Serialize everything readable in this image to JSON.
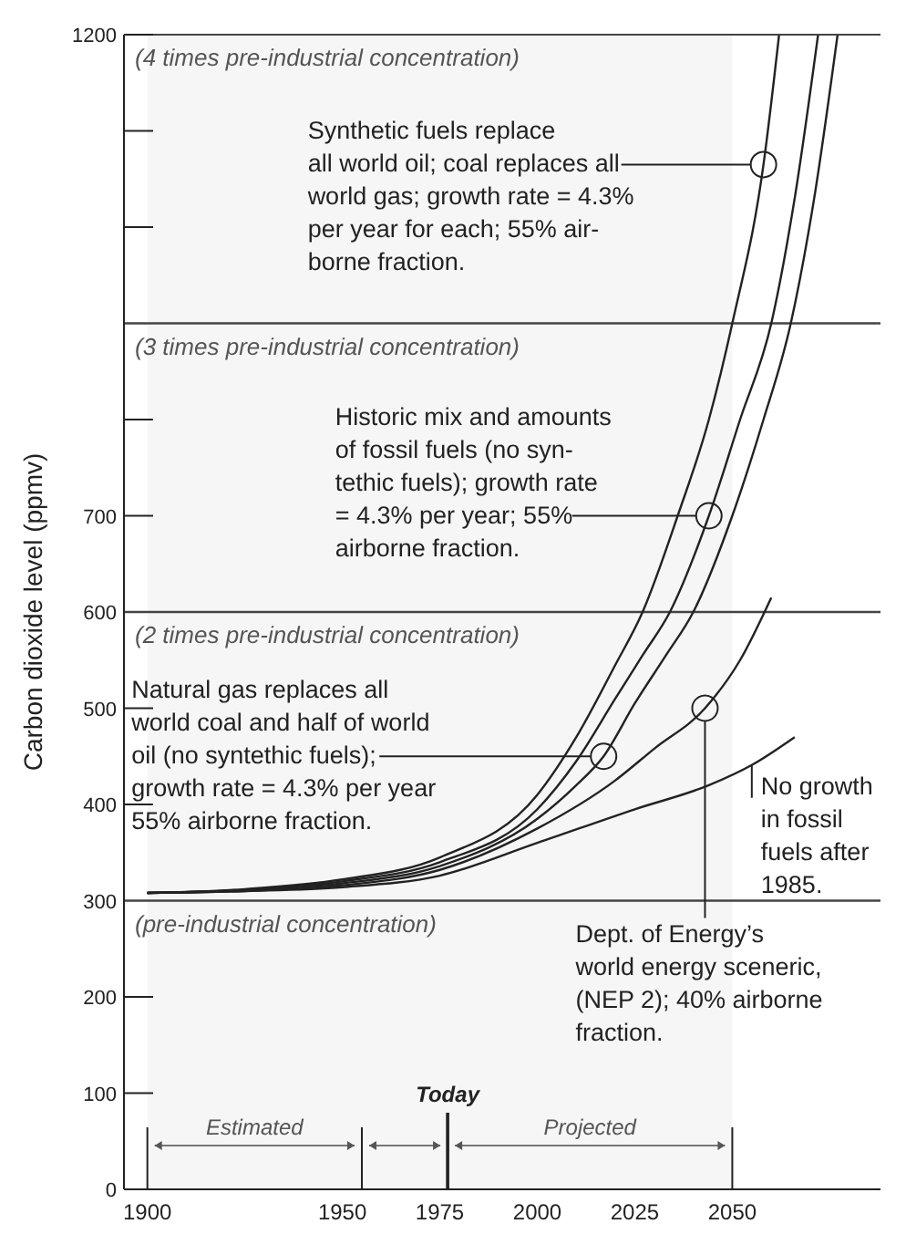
{
  "chart_data": {
    "type": "line",
    "ylabel": "Carbon dioxide level (ppmv)",
    "xlim": [
      1894,
      2088
    ],
    "xticks": [
      1900,
      1950,
      1975,
      2000,
      2025,
      2050
    ],
    "ylim": [
      0,
      1200
    ],
    "yticks": [
      0,
      100,
      200,
      300,
      400,
      500,
      600,
      700,
      {
        "value": 800,
        "label": null
      },
      {
        "value": 900,
        "label": null
      },
      {
        "value": 1000,
        "label": null
      },
      {
        "value": 1100,
        "label": null
      },
      1200
    ],
    "marker": "none",
    "line_style": "solid",
    "series": [
      {
        "color": "#222222",
        "x": [
          1900,
          1925,
          1950,
          1975,
          2000,
          2010,
          2020,
          2027,
          2036,
          2044,
          2050,
          2058,
          2062
        ],
        "values": [
          308,
          312,
          322,
          345,
          410,
          470,
          545,
          600,
          700,
          800,
          900,
          1065,
          1200
        ]
      },
      {
        "color": "#222222",
        "x": [
          1900,
          1925,
          1950,
          1975,
          2000,
          2010,
          2020,
          2027,
          2034,
          2044,
          2052,
          2060,
          2066,
          2072
        ],
        "values": [
          308,
          311,
          320,
          340,
          395,
          445,
          510,
          555,
          600,
          700,
          800,
          900,
          1030,
          1200
        ]
      },
      {
        "color": "#222222",
        "x": [
          1900,
          1925,
          1950,
          1975,
          2000,
          2010,
          2017,
          2025,
          2033,
          2040,
          2050,
          2058,
          2065,
          2071,
          2077
        ],
        "values": [
          308,
          311,
          318,
          336,
          385,
          420,
          450,
          505,
          555,
          600,
          700,
          800,
          900,
          1030,
          1200
        ]
      },
      {
        "color": "#222222",
        "x": [
          1900,
          1925,
          1950,
          1975,
          2000,
          2020,
          2030,
          2043,
          2052,
          2060
        ],
        "values": [
          308,
          310,
          316,
          332,
          375,
          425,
          458,
          500,
          550,
          615
        ]
      },
      {
        "color": "#222222",
        "x": [
          1900,
          1925,
          1950,
          1975,
          2000,
          2025,
          2044,
          2055,
          2066
        ],
        "values": [
          308,
          310,
          314,
          326,
          360,
          395,
          420,
          441,
          470
        ]
      }
    ],
    "ref_lines": [
      {
        "axis": "y",
        "value": 300,
        "label": "(pre-industrial concentration)",
        "color": "#444444"
      },
      {
        "axis": "y",
        "value": 600,
        "label": "(2 times pre-industrial concentration)",
        "color": "#444444"
      },
      {
        "axis": "y",
        "value": 900,
        "label": "(3 times pre-industrial concentration)",
        "color": "#444444"
      },
      {
        "axis": "x",
        "value": 1977,
        "label": "Today",
        "color": "#222222"
      }
    ],
    "bands": [
      {
        "axis": "x",
        "from": 1900,
        "to": 1955,
        "label": "Estimated",
        "color": "#f6f6f6"
      },
      {
        "axis": "x",
        "from": 1955,
        "to": 1977,
        "label": null,
        "color": "#f6f6f6"
      },
      {
        "axis": "x",
        "from": 1977,
        "to": 2050,
        "label": "Projected",
        "color": "#f6f6f6"
      }
    ],
    "annotations": [
      {
        "text": "Synthetic fuels replace\nall world oil; coal replaces all\nworld gas; growth rate = 4.3%\nper year for each; 55% air-\nborne fraction.",
        "x": 2058,
        "y": 1065
      },
      {
        "text": "Historic mix and amounts\nof fossil fuels (no syn-\ntethic fuels); growth rate\n= 4.3% per year; 55%\nairborne fraction.",
        "x": 2044,
        "y": 700
      },
      {
        "text": "Natural gas replaces all\nworld coal and half of world\noil (no syntethic fuels);\ngrowth rate = 4.3% per year\n55% airborne fraction.",
        "x": 2017,
        "y": 450
      },
      {
        "text": "Dept. of Energy’s\nworld energy sceneric,\n(NEP 2); 40% airborne\nfraction.",
        "x": 2043,
        "y": 500
      },
      {
        "text": "No growth\nin fossil\nfuels after\n1985.",
        "x": 2055,
        "y": 441
      },
      "(4 times pre-industrial concentration)"
    ]
  }
}
